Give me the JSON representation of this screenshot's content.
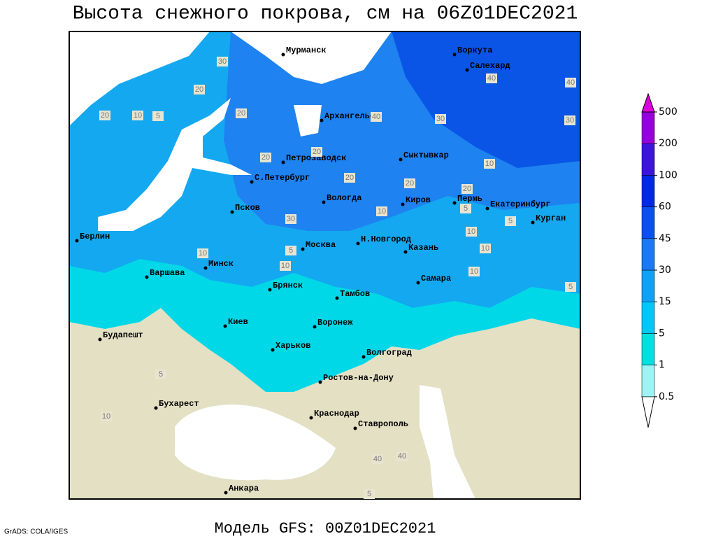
{
  "title": "Высота снежного покрова, см на 06Z01DEC2021",
  "footer": {
    "model": "Модель GFS: 00Z01DEC2021",
    "credit": "GrADS: COLA/IGES"
  },
  "map": {
    "cities": [
      "Мурманск",
      "Воркута",
      "Салехард",
      "Архангельск",
      "Сыктывкар",
      "Петрозаводск",
      "С.Петербург",
      "Вологда",
      "Киров",
      "Пермь",
      "Екатеринбург",
      "Курган",
      "Псков",
      "Берлин",
      "Н.Новгород",
      "Москва",
      "Казань",
      "Минск",
      "Варшава",
      "Самара",
      "Брянск",
      "Тамбов",
      "Киев",
      "Воронеж",
      "Будапешт",
      "Харьков",
      "Волгоград",
      "Ростов-на-Дону",
      "Бухарест",
      "Краснодар",
      "Ставрополь",
      "Анкара"
    ],
    "contour_labels": [
      30,
      20,
      20,
      10,
      5,
      20,
      20,
      40,
      30,
      40,
      40,
      30,
      20,
      20,
      30,
      10,
      20,
      10,
      5,
      10,
      5,
      10,
      10,
      5,
      10,
      10,
      5,
      5,
      10,
      40,
      40,
      5,
      20
    ]
  },
  "colorbar": {
    "levels": [
      0.5,
      1,
      5,
      15,
      30,
      45,
      60,
      100,
      200,
      500
    ],
    "colors": [
      "#ffffff",
      "#9cf4f4",
      "#00e0e0",
      "#00c8f5",
      "#14a0f0",
      "#1e78f0",
      "#0a50f0",
      "#0028e6",
      "#3c14dc",
      "#9600dc",
      "#dc00dc"
    ]
  }
}
